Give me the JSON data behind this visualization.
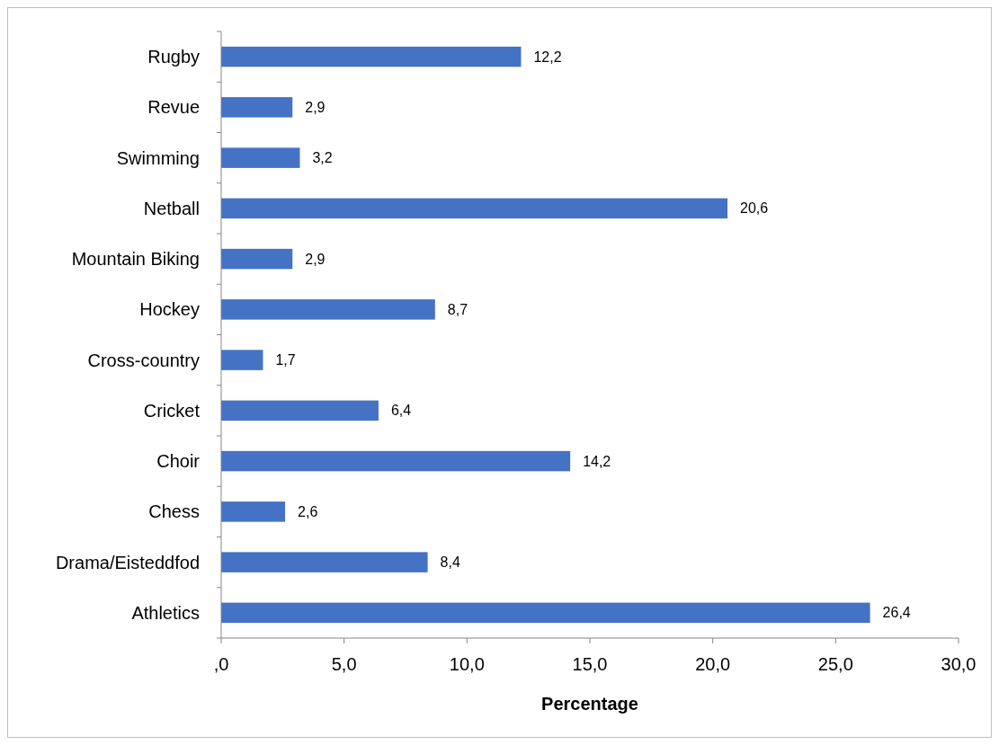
{
  "chart_data": {
    "type": "bar",
    "orientation": "horizontal",
    "xlabel": "Percentage",
    "categories": [
      "Rugby",
      "Revue",
      "Swimming",
      "Netball",
      "Mountain Biking",
      "Hockey",
      "Cross-country",
      "Cricket",
      "Choir",
      "Chess",
      "Drama/Eisteddfod",
      "Athletics"
    ],
    "values": [
      12.2,
      2.9,
      3.2,
      20.6,
      2.9,
      8.7,
      1.7,
      6.4,
      14.2,
      2.6,
      8.4,
      26.4
    ],
    "value_labels": [
      "12,2",
      "2,9",
      "3,2",
      "20,6",
      "2,9",
      "8,7",
      "1,7",
      "6,4",
      "14,2",
      "2,6",
      "8,4",
      "26,4"
    ],
    "color": "#4472c4",
    "xlim": [
      0,
      30
    ],
    "xticks": [
      {
        "value": 0,
        "label": ",0"
      },
      {
        "value": 5,
        "label": "5,0"
      },
      {
        "value": 10,
        "label": "10,0"
      },
      {
        "value": 15,
        "label": "15,0"
      },
      {
        "value": 20,
        "label": "20,0"
      },
      {
        "value": 25,
        "label": "25,0"
      },
      {
        "value": 30,
        "label": "30,0"
      }
    ],
    "grid": false
  }
}
